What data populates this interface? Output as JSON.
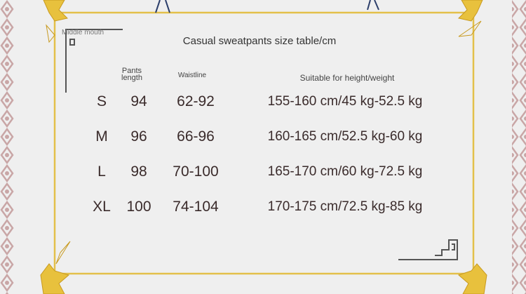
{
  "watermark": "Middle mouth",
  "title": "Casual sweatpants size table/cm",
  "table": {
    "headers": [
      "Pants length",
      "Waistline",
      "Suitable for height/weight"
    ],
    "rows": [
      [
        "S",
        "94",
        "62-92",
        "155-160 cm/45 kg-52.5 kg"
      ],
      [
        "M",
        "96",
        "66-96",
        "160-165 cm/52.5 kg-60 kg"
      ],
      [
        "L",
        "98",
        "70-100",
        "165-170 cm/60 kg-72.5 kg"
      ],
      [
        "XL",
        "100",
        "74-104",
        "170-175 cm/72.5 kg-85 kg"
      ]
    ]
  }
}
